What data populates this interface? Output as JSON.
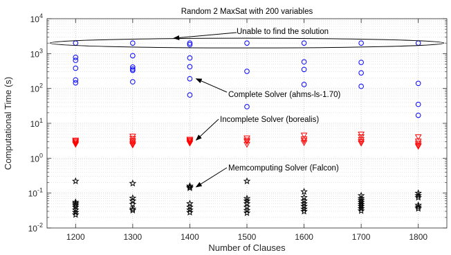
{
  "chart_data": {
    "type": "scatter",
    "title": "Random 2 MaxSat with 200 variables",
    "xlabel": "Number of Clauses",
    "ylabel": "Computational Time (s)",
    "xlim": [
      1150,
      1850
    ],
    "ylim": [
      0.01,
      10000
    ],
    "yscale": "log",
    "grid": true,
    "x_ticks": [
      1200,
      1300,
      1400,
      1500,
      1600,
      1700,
      1800
    ],
    "x_tick_labels": [
      "1200",
      "1300",
      "1400",
      "1500",
      "1600",
      "1700",
      "1800"
    ],
    "y_ticks": [
      0.01,
      0.1,
      1,
      10,
      100,
      1000,
      10000
    ],
    "y_tick_labels": [
      {
        "base": "10",
        "exp": "-2"
      },
      {
        "base": "10",
        "exp": "-1"
      },
      {
        "base": "10",
        "exp": "0"
      },
      {
        "base": "10",
        "exp": "1"
      },
      {
        "base": "10",
        "exp": "2"
      },
      {
        "base": "10",
        "exp": "3"
      },
      {
        "base": "10",
        "exp": "4"
      }
    ],
    "series": [
      {
        "marker": "circle",
        "color": "#0000ff",
        "points": [
          [
            1200,
            2000
          ],
          [
            1200,
            780
          ],
          [
            1200,
            640
          ],
          [
            1200,
            380
          ],
          [
            1200,
            175
          ],
          [
            1200,
            145
          ],
          [
            1300,
            2000
          ],
          [
            1300,
            870
          ],
          [
            1300,
            410
          ],
          [
            1300,
            360
          ],
          [
            1300,
            330
          ],
          [
            1300,
            155
          ],
          [
            1400,
            2000
          ],
          [
            1400,
            1800
          ],
          [
            1400,
            750
          ],
          [
            1400,
            420
          ],
          [
            1400,
            190
          ],
          [
            1400,
            65
          ],
          [
            1500,
            2000
          ],
          [
            1500,
            310
          ],
          [
            1500,
            30
          ],
          [
            1600,
            2000
          ],
          [
            1600,
            580
          ],
          [
            1600,
            350
          ],
          [
            1600,
            130
          ],
          [
            1700,
            2000
          ],
          [
            1700,
            560
          ],
          [
            1700,
            280
          ],
          [
            1700,
            115
          ],
          [
            1800,
            2000
          ],
          [
            1800,
            140
          ],
          [
            1800,
            35
          ],
          [
            1800,
            17
          ]
        ]
      },
      {
        "marker": "triangle-down",
        "color": "#ff0000",
        "points": [
          [
            1200,
            3.3
          ],
          [
            1200,
            3.1
          ],
          [
            1200,
            2.9
          ],
          [
            1200,
            2.7
          ],
          [
            1200,
            2.5
          ],
          [
            1300,
            4.3
          ],
          [
            1300,
            3.7
          ],
          [
            1300,
            3.2
          ],
          [
            1300,
            2.9
          ],
          [
            1300,
            2.6
          ],
          [
            1300,
            2.4
          ],
          [
            1400,
            3.5
          ],
          [
            1400,
            3.3
          ],
          [
            1400,
            3.1
          ],
          [
            1400,
            2.9
          ],
          [
            1400,
            2.7
          ],
          [
            1500,
            3.8
          ],
          [
            1500,
            3.3
          ],
          [
            1500,
            3.0
          ],
          [
            1500,
            2.5
          ],
          [
            1600,
            4.6
          ],
          [
            1600,
            3.6
          ],
          [
            1600,
            3.2
          ],
          [
            1600,
            2.8
          ],
          [
            1700,
            4.9
          ],
          [
            1700,
            4.1
          ],
          [
            1700,
            3.4
          ],
          [
            1700,
            3.0
          ],
          [
            1700,
            2.7
          ],
          [
            1800,
            4.1
          ],
          [
            1800,
            3.1
          ],
          [
            1800,
            2.7
          ],
          [
            1800,
            2.4
          ],
          [
            1800,
            2.2
          ]
        ]
      },
      {
        "marker": "star",
        "color": "#000000",
        "points": [
          [
            1200,
            0.22
          ],
          [
            1200,
            0.055
          ],
          [
            1200,
            0.05
          ],
          [
            1200,
            0.045
          ],
          [
            1200,
            0.04
          ],
          [
            1200,
            0.033
          ],
          [
            1200,
            0.028
          ],
          [
            1200,
            0.024
          ],
          [
            1300,
            0.19
          ],
          [
            1300,
            0.072
          ],
          [
            1300,
            0.06
          ],
          [
            1300,
            0.048
          ],
          [
            1300,
            0.035
          ],
          [
            1300,
            0.032
          ],
          [
            1400,
            0.16
          ],
          [
            1400,
            0.15
          ],
          [
            1400,
            0.14
          ],
          [
            1400,
            0.05
          ],
          [
            1400,
            0.04
          ],
          [
            1400,
            0.033
          ],
          [
            1400,
            0.028
          ],
          [
            1500,
            0.22
          ],
          [
            1500,
            0.07
          ],
          [
            1500,
            0.06
          ],
          [
            1500,
            0.05
          ],
          [
            1500,
            0.04
          ],
          [
            1500,
            0.032
          ],
          [
            1500,
            0.027
          ],
          [
            1600,
            0.11
          ],
          [
            1600,
            0.075
          ],
          [
            1600,
            0.06
          ],
          [
            1600,
            0.05
          ],
          [
            1600,
            0.042
          ],
          [
            1600,
            0.035
          ],
          [
            1600,
            0.03
          ],
          [
            1700,
            0.085
          ],
          [
            1700,
            0.07
          ],
          [
            1700,
            0.062
          ],
          [
            1700,
            0.055
          ],
          [
            1700,
            0.048
          ],
          [
            1700,
            0.042
          ],
          [
            1700,
            0.036
          ],
          [
            1700,
            0.031
          ],
          [
            1800,
            0.1
          ],
          [
            1800,
            0.085
          ],
          [
            1800,
            0.075
          ],
          [
            1800,
            0.045
          ],
          [
            1800,
            0.04
          ],
          [
            1800,
            0.036
          ]
        ]
      }
    ],
    "annotations": [
      {
        "text": "Unable to find the solution",
        "target": [
          1350,
          2000
        ],
        "shape": "ellipse",
        "ellipse_x": [
          1155,
          1845
        ],
        "ellipse_y_center": 2000
      },
      {
        "text": "Complete Solver (ahms-ls-1.70)",
        "target": [
          1405,
          190
        ]
      },
      {
        "text": "Incomplete Solver (borealis)",
        "target": [
          1405,
          3.3
        ]
      },
      {
        "text": "Memcomputing Solver (Falcon)",
        "target": [
          1405,
          0.15
        ]
      }
    ]
  }
}
